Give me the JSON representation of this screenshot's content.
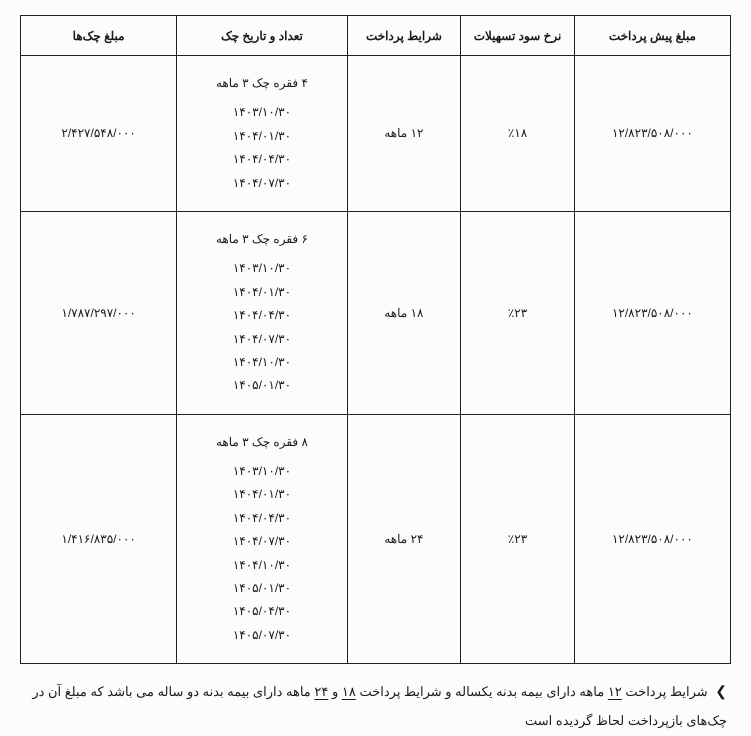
{
  "table": {
    "headers": {
      "prepayment": "مبلغ پیش پرداخت",
      "rate": "نرخ سود تسهیلات",
      "terms": "شرایط پرداخت",
      "cheque_info": "تعداد و تاریخ چک",
      "cheque_amount": "مبلغ چک‌ها"
    },
    "rows": [
      {
        "prepayment": "۱۲/۸۲۳/۵۰۸/۰۰۰",
        "rate": "٪۱۸",
        "terms": "۱۲ ماهه",
        "cheque_title": "۴ فقره چک ۳ ماهه",
        "dates": [
          "۱۴۰۳/۱۰/۳۰",
          "۱۴۰۴/۰۱/۳۰",
          "۱۴۰۴/۰۴/۳۰",
          "۱۴۰۴/۰۷/۳۰"
        ],
        "cheque_amount": "۲/۴۲۷/۵۴۸/۰۰۰"
      },
      {
        "prepayment": "۱۲/۸۲۳/۵۰۸/۰۰۰",
        "rate": "٪۲۳",
        "terms": "۱۸ ماهه",
        "cheque_title": "۶ فقره چک ۳ ماهه",
        "dates": [
          "۱۴۰۳/۱۰/۳۰",
          "۱۴۰۴/۰۱/۳۰",
          "۱۴۰۴/۰۴/۳۰",
          "۱۴۰۴/۰۷/۳۰",
          "۱۴۰۴/۱۰/۳۰",
          "۱۴۰۵/۰۱/۳۰"
        ],
        "cheque_amount": "۱/۷۸۷/۲۹۷/۰۰۰"
      },
      {
        "prepayment": "۱۲/۸۲۳/۵۰۸/۰۰۰",
        "rate": "٪۲۳",
        "terms": "۲۴ ماهه",
        "cheque_title": "۸ فقره چک ۳ ماهه",
        "dates": [
          "۱۴۰۳/۱۰/۳۰",
          "۱۴۰۴/۰۱/۳۰",
          "۱۴۰۴/۰۴/۳۰",
          "۱۴۰۴/۰۷/۳۰",
          "۱۴۰۴/۱۰/۳۰",
          "۱۴۰۵/۰۱/۳۰",
          "۱۴۰۵/۰۴/۳۰",
          "۱۴۰۵/۰۷/۳۰"
        ],
        "cheque_amount": "۱/۴۱۶/۸۳۵/۰۰۰"
      }
    ]
  },
  "footnote": {
    "marker": "❯",
    "text_1": "شرایط پرداخت ",
    "u1": "۱۲",
    "text_2": " ماهه دارای بیمه بدنه یکساله و شرایط پرداخت ",
    "u2": "۱۸",
    "text_3": " و ",
    "u3": "۲۴",
    "text_4": " ماهه دارای بیمه بدنه دو ساله می باشد که مبلغ آن در چک‌های بازپرداخت لحاظ گردیده است"
  }
}
